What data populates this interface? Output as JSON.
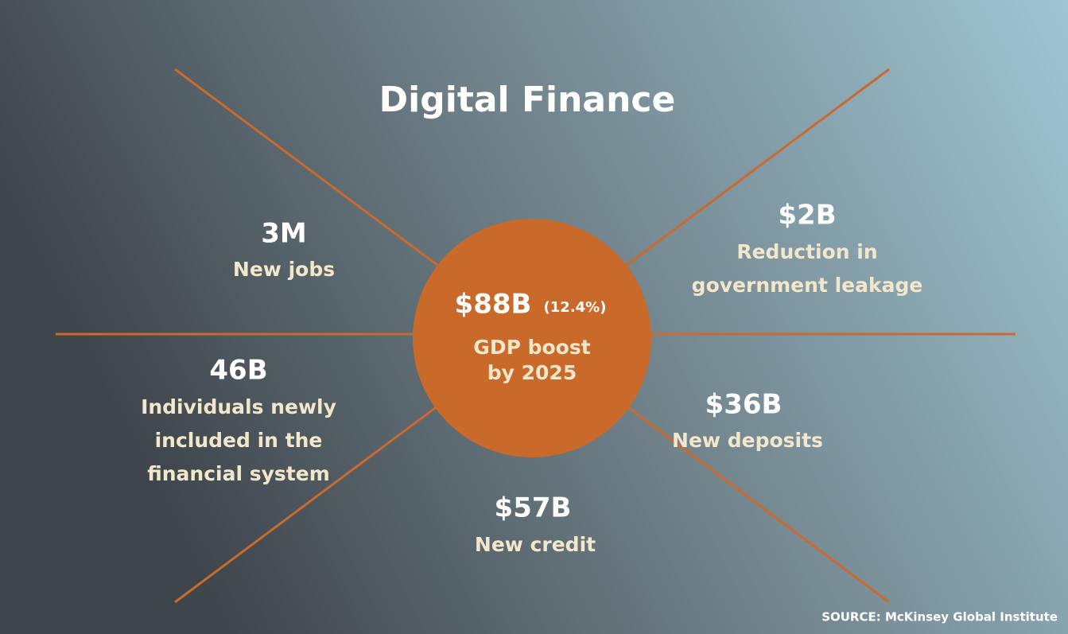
{
  "title": "Digital Finance",
  "center": {
    "value": "$88B",
    "note": "(12.4%)",
    "label": [
      "GDP boost",
      "by 2025"
    ]
  },
  "items": [
    {
      "value": "3M",
      "label": [
        "New jobs"
      ]
    },
    {
      "value": "$2B",
      "label": [
        "Reduction in",
        "government leakage"
      ]
    },
    {
      "value": "46B",
      "label": [
        "Individuals newly",
        "included in the",
        "financial system"
      ]
    },
    {
      "value": "$36B",
      "label": [
        "New deposits"
      ]
    },
    {
      "value": "$57B",
      "label": [
        "New credit"
      ]
    }
  ],
  "source": "SOURCE: McKinsey Global Institute"
}
